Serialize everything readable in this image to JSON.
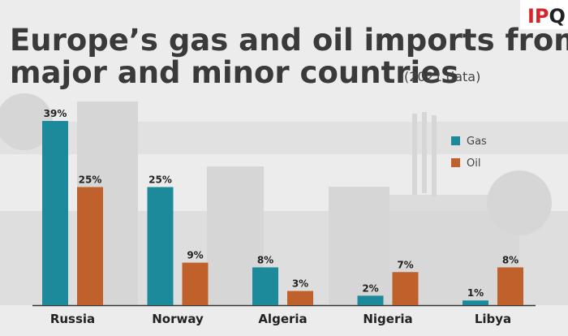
{
  "logo": [
    "IP",
    "Q"
  ],
  "chart_data": {
    "type": "bar",
    "title": [
      "Europe’s gas and oil imports from",
      "major and minor countries"
    ],
    "subtitle": "(2021 data)",
    "categories": [
      "Russia",
      "Norway",
      "Algeria",
      "Nigeria",
      "Libya"
    ],
    "series": [
      {
        "name": "Gas",
        "color": "#1d8a9c",
        "values": [
          39,
          25,
          8,
          2,
          1
        ],
        "value_labels": [
          "39%",
          "25%",
          "8%",
          "2%",
          "1%"
        ]
      },
      {
        "name": "Oil",
        "color": "#c0612b",
        "values": [
          25,
          9,
          3,
          7,
          8
        ],
        "value_labels": [
          "25%",
          "9%",
          "3%",
          "7%",
          "8%"
        ]
      }
    ]
  }
}
